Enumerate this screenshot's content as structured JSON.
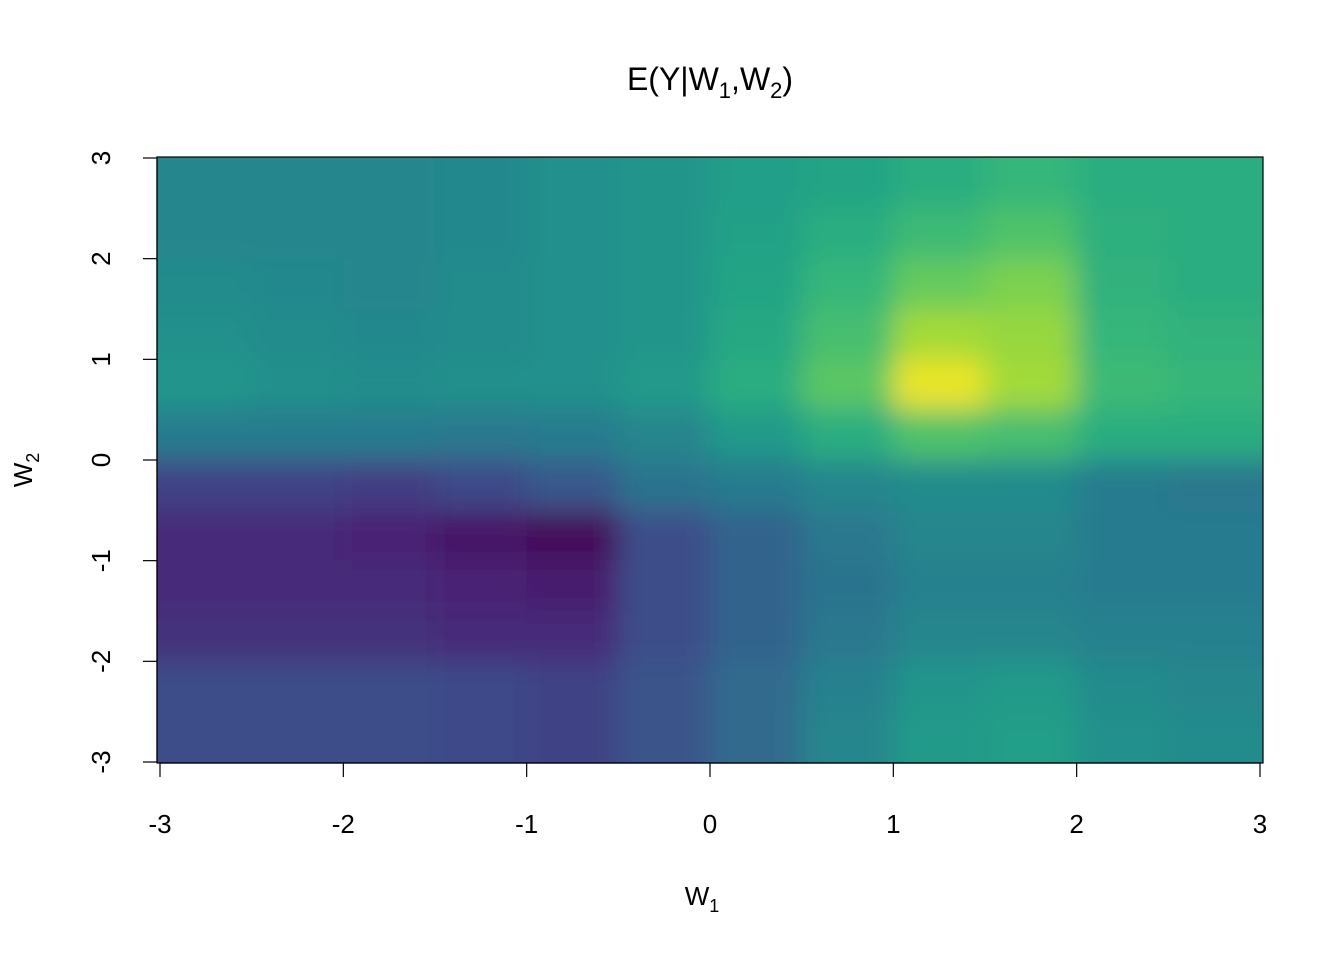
{
  "chart_data": {
    "type": "heatmap",
    "title": {
      "prefix": "E(Y|W",
      "sub1": "1",
      "mid": ",W",
      "sub2": "2",
      "suffix": ")"
    },
    "xlabel": {
      "base": "W",
      "sub": "1"
    },
    "ylabel": {
      "base": "W",
      "sub": "2"
    },
    "xlim": [
      -3,
      3
    ],
    "ylim": [
      -3,
      3
    ],
    "xticks": [
      -3,
      -2,
      -1,
      0,
      1,
      2,
      3
    ],
    "yticks": [
      -3,
      -2,
      -1,
      0,
      1,
      2,
      3
    ],
    "xtick_labels": [
      "-3",
      "-2",
      "-1",
      "0",
      "1",
      "2",
      "3"
    ],
    "ytick_labels": [
      "-3",
      "-2",
      "-1",
      "0",
      "1",
      "2",
      "3"
    ],
    "colormap": "viridis",
    "colormap_stops": [
      "#440154",
      "#482878",
      "#3e4989",
      "#31688e",
      "#26828e",
      "#1f9e89",
      "#35b779",
      "#6ece58",
      "#b5de2b",
      "#fde725"
    ],
    "grid": false,
    "legend": "none",
    "x_centers": [
      -2.75,
      -2.25,
      -1.75,
      -1.25,
      -0.75,
      -0.25,
      0.25,
      0.75,
      1.25,
      1.75,
      2.25,
      2.75
    ],
    "y_centers": [
      2.75,
      2.25,
      1.75,
      1.25,
      0.75,
      0.25,
      -0.25,
      -0.75,
      -1.25,
      -1.75,
      -2.25,
      -2.75
    ],
    "z_relative": [
      [
        0.46,
        0.46,
        0.46,
        0.47,
        0.5,
        0.52,
        0.56,
        0.58,
        0.62,
        0.66,
        0.62,
        0.62
      ],
      [
        0.46,
        0.46,
        0.46,
        0.47,
        0.5,
        0.52,
        0.57,
        0.62,
        0.68,
        0.72,
        0.63,
        0.62
      ],
      [
        0.48,
        0.47,
        0.46,
        0.48,
        0.5,
        0.52,
        0.58,
        0.66,
        0.76,
        0.8,
        0.64,
        0.62
      ],
      [
        0.5,
        0.48,
        0.47,
        0.48,
        0.5,
        0.52,
        0.6,
        0.7,
        0.86,
        0.84,
        0.66,
        0.64
      ],
      [
        0.52,
        0.5,
        0.49,
        0.5,
        0.5,
        0.54,
        0.62,
        0.74,
        0.97,
        0.86,
        0.68,
        0.66
      ],
      [
        0.42,
        0.42,
        0.42,
        0.4,
        0.42,
        0.46,
        0.54,
        0.62,
        0.72,
        0.7,
        0.62,
        0.62
      ],
      [
        0.2,
        0.2,
        0.18,
        0.22,
        0.28,
        0.38,
        0.42,
        0.46,
        0.48,
        0.48,
        0.42,
        0.4
      ],
      [
        0.12,
        0.12,
        0.1,
        0.06,
        0.02,
        0.24,
        0.32,
        0.4,
        0.46,
        0.46,
        0.42,
        0.42
      ],
      [
        0.12,
        0.12,
        0.12,
        0.1,
        0.08,
        0.24,
        0.32,
        0.38,
        0.44,
        0.44,
        0.42,
        0.42
      ],
      [
        0.14,
        0.14,
        0.14,
        0.12,
        0.12,
        0.24,
        0.32,
        0.4,
        0.46,
        0.46,
        0.44,
        0.44
      ],
      [
        0.24,
        0.24,
        0.24,
        0.22,
        0.2,
        0.26,
        0.34,
        0.44,
        0.52,
        0.54,
        0.48,
        0.46
      ],
      [
        0.24,
        0.24,
        0.24,
        0.22,
        0.2,
        0.26,
        0.34,
        0.46,
        0.54,
        0.56,
        0.5,
        0.48
      ]
    ]
  }
}
